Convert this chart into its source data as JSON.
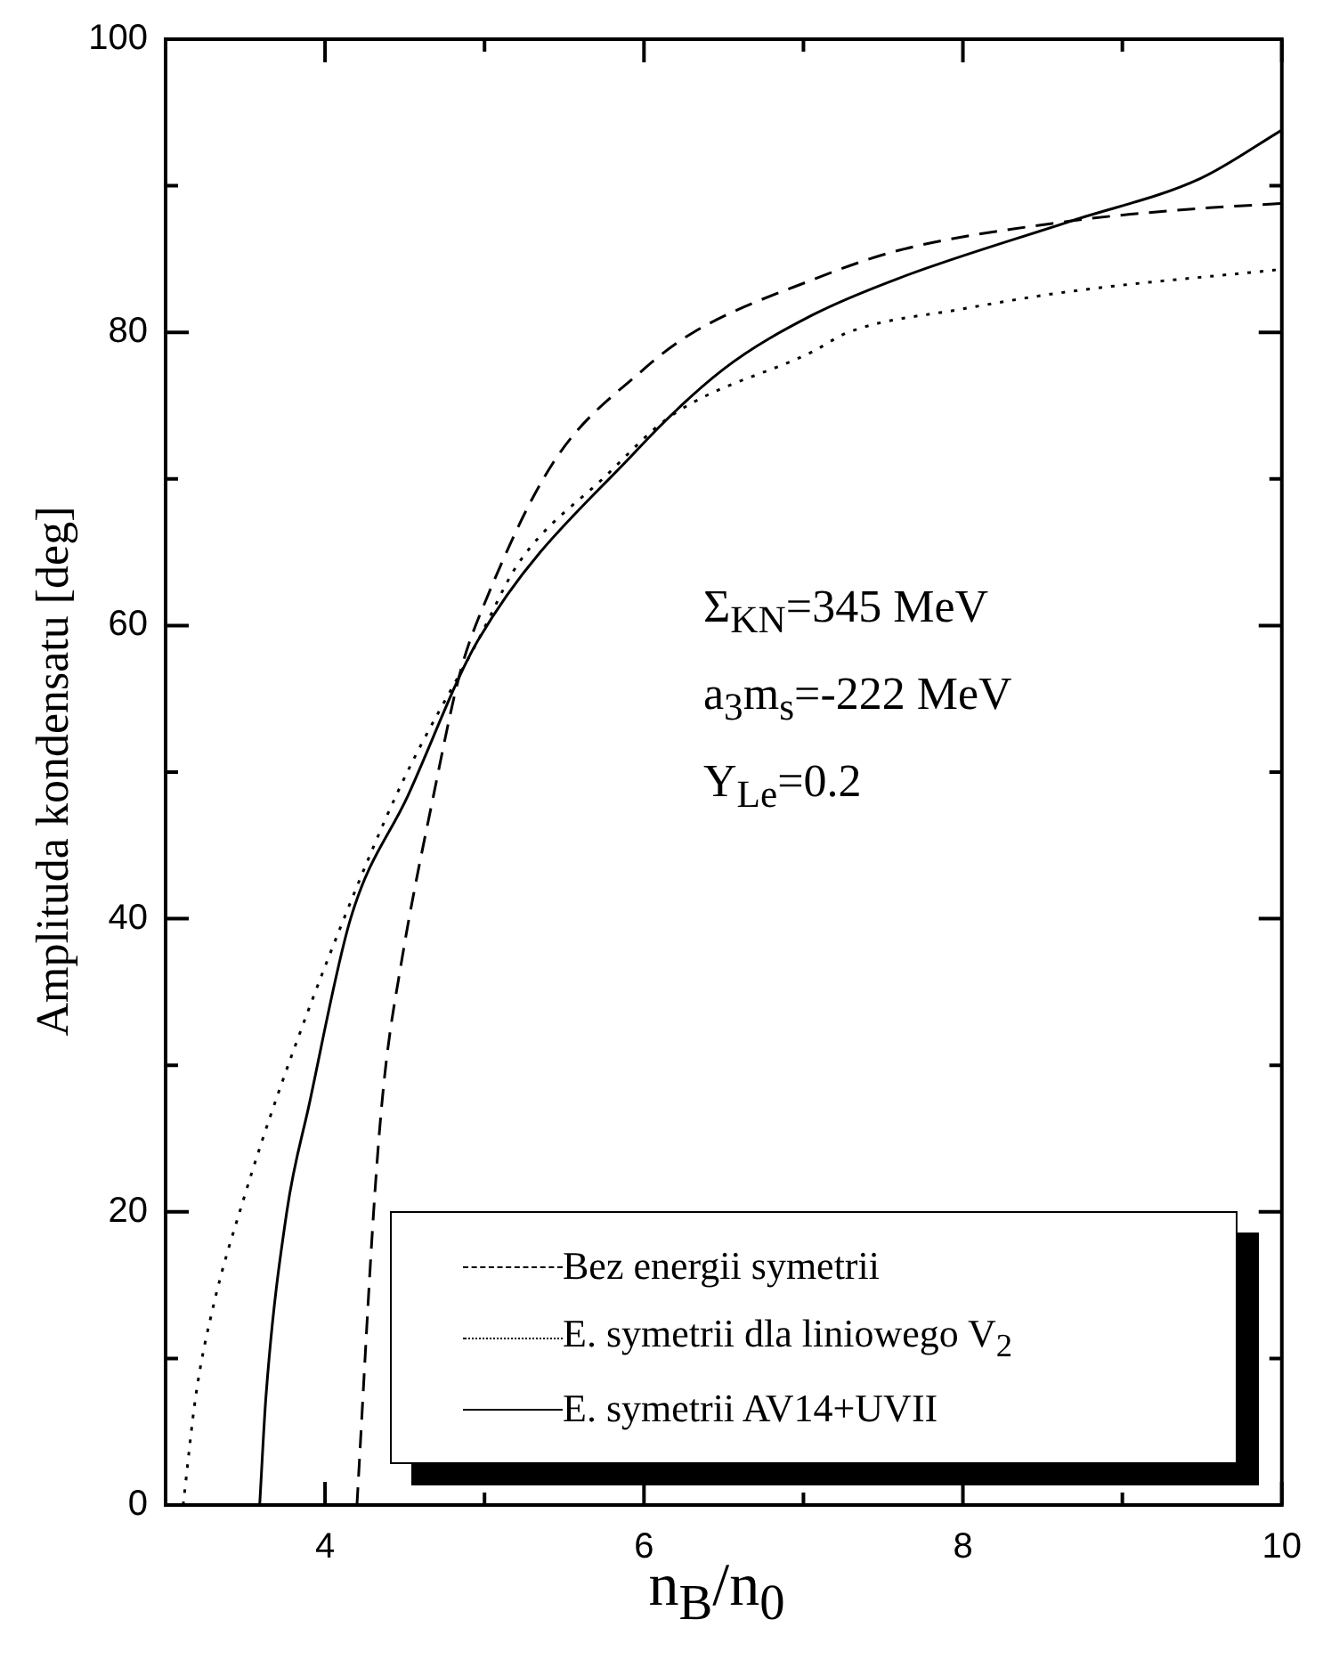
{
  "chart_data": {
    "type": "line",
    "xlabel": "n$_{B}$/n$_{0}$",
    "ylabel": "Amplituda kondensatu [deg]",
    "xlim": [
      3,
      10
    ],
    "xticks": [
      4,
      {
        "value": 5,
        "label": null
      },
      6,
      {
        "value": 7,
        "label": null
      },
      8,
      {
        "value": 9,
        "label": null
      },
      10
    ],
    "ylim": [
      0,
      100
    ],
    "yticks": [
      0,
      {
        "value": 10,
        "label": null
      },
      20,
      {
        "value": 30,
        "label": null
      },
      40,
      {
        "value": 50,
        "label": null
      },
      60,
      {
        "value": 70,
        "label": null
      },
      80,
      {
        "value": 90,
        "label": null
      },
      100
    ],
    "grid": false,
    "legend": "bottom right",
    "marker": "none",
    "annotations": [
      "Σ$_{KN}$=345 MeV",
      "a$_{3}$m$_{s}$=-222 MeV",
      "Y$_{Le}$=0.2"
    ],
    "series": [
      {
        "name": "Bez energii symetrii",
        "color": "#000000",
        "line_style": "dashed",
        "x": [
          4.2,
          4.31,
          4.37,
          4.48,
          4.68,
          4.85,
          5.0,
          5.43,
          6.0,
          6.31,
          7.06,
          7.6,
          8.68,
          9.3,
          10.0
        ],
        "values": [
          0,
          20.9,
          28.9,
          37.1,
          48.4,
          56.9,
          61.5,
          71.1,
          77.5,
          80.0,
          83.6,
          85.6,
          87.6,
          88.3,
          88.8
        ]
      },
      {
        "name": "E. symetrii dla liniowego V$_{2}$",
        "color": "#000000",
        "line_style": "dotted",
        "x": [
          3.11,
          3.19,
          3.3,
          3.49,
          3.71,
          4.1,
          4.48,
          4.96,
          5.21,
          5.76,
          6.17,
          7.06,
          7.28,
          8.0,
          8.68,
          10.0
        ],
        "values": [
          0,
          7.5,
          13.6,
          20.9,
          28.2,
          39.5,
          49.2,
          59.0,
          64.2,
          70.2,
          74.3,
          78.7,
          80.0,
          81.6,
          82.8,
          84.3
        ]
      },
      {
        "name": "E. symetrii AV14+UVII",
        "color": "#000000",
        "line_style": "solid",
        "x": [
          3.59,
          3.63,
          3.76,
          3.9,
          4.16,
          4.52,
          4.96,
          5.95,
          6.5,
          7.06,
          7.6,
          8.68,
          9.49,
          10.0
        ],
        "values": [
          0,
          7.5,
          20,
          27.3,
          40,
          48.4,
          59.0,
          71.9,
          77.5,
          81.2,
          83.7,
          87.6,
          90.5,
          93.8
        ]
      }
    ]
  }
}
